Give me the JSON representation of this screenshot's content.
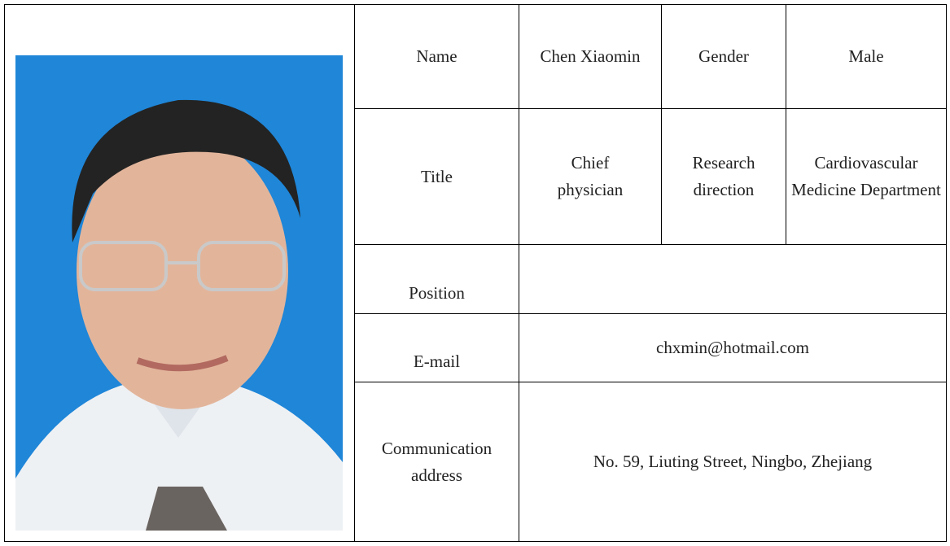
{
  "table": {
    "name_label": "Name",
    "name": "Chen Xiaomin",
    "gender_label": "Gender",
    "gender": "Male",
    "title_label": "Title",
    "title": "Chief physician",
    "research_label": "Research direction",
    "research": "Cardiovascular Medicine Department",
    "position_label": "Position",
    "email_label": "E-mail",
    "email": "chxmin@hotmail.com",
    "address_label": "Communication address",
    "address": "No. 59, Liuting Street, Ningbo, Zhejiang"
  }
}
